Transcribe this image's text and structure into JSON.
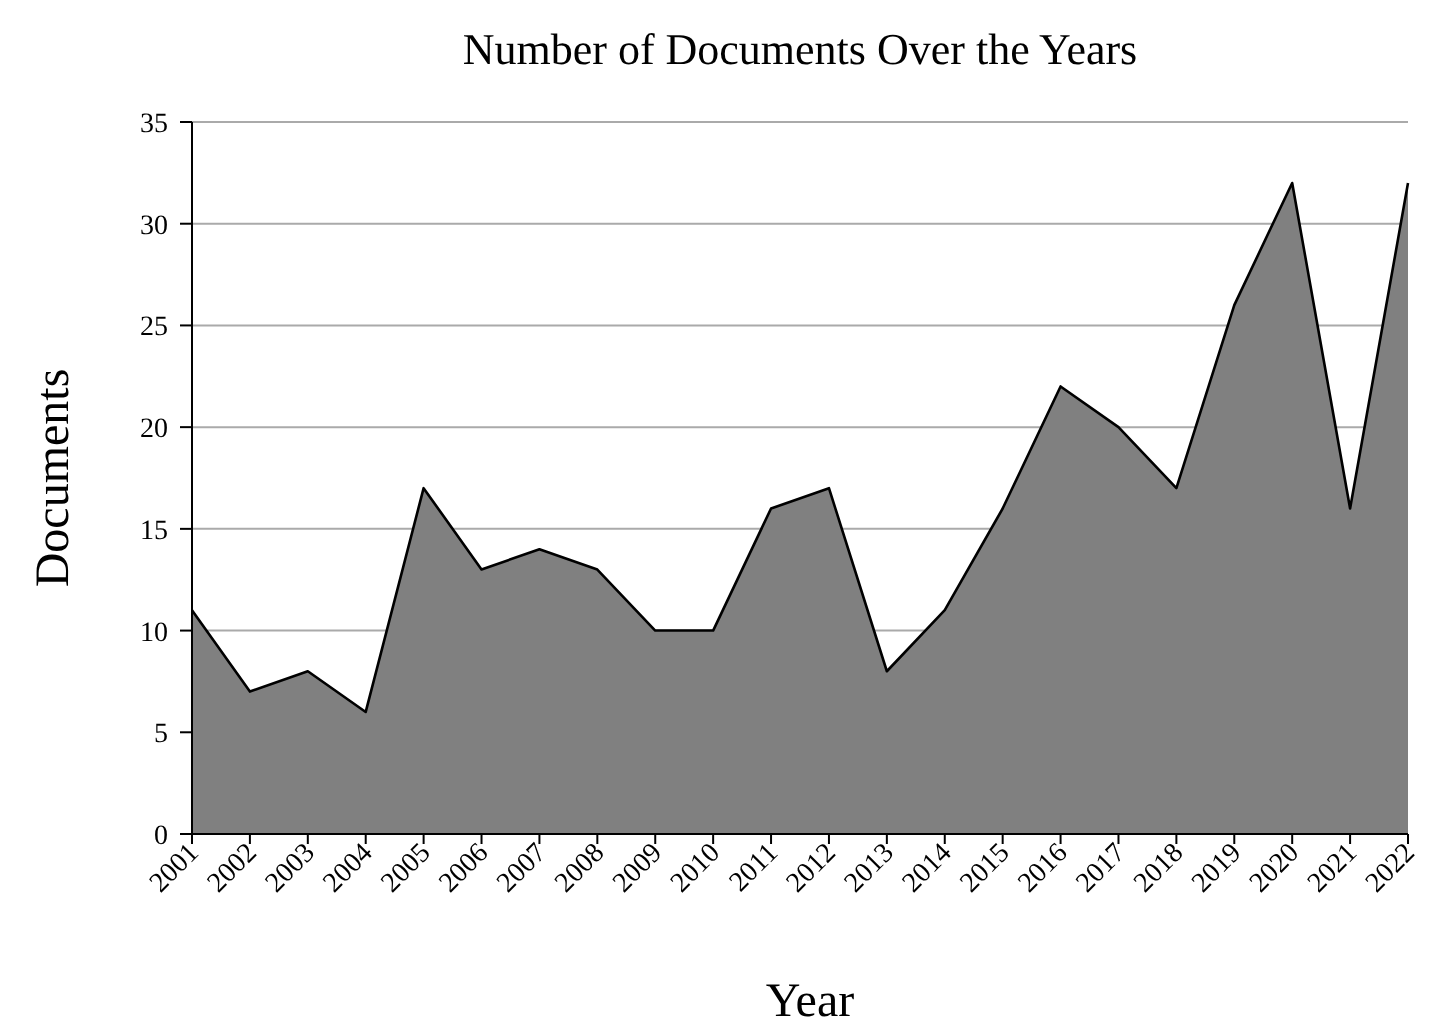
{
  "chart_data": {
    "type": "area",
    "title": "Number of Documents Over the Years",
    "xlabel": "Year",
    "ylabel": "Documents",
    "categories": [
      "2001",
      "2002",
      "2003",
      "2004",
      "2005",
      "2006",
      "2007",
      "2008",
      "2009",
      "2010",
      "2011",
      "2012",
      "2013",
      "2014",
      "2015",
      "2016",
      "2017",
      "2018",
      "2019",
      "2020",
      "2021",
      "2022"
    ],
    "series": [
      {
        "color": "#808080",
        "values": [
          11,
          7,
          8,
          6,
          17,
          13,
          14,
          13,
          10,
          10,
          16,
          17,
          8,
          11,
          16,
          22,
          20,
          17,
          26,
          32,
          16,
          32
        ]
      }
    ],
    "ylim": [
      0,
      35
    ],
    "yticks": [
      0,
      5,
      10,
      15,
      20,
      25,
      30,
      35
    ],
    "grid": "y"
  }
}
